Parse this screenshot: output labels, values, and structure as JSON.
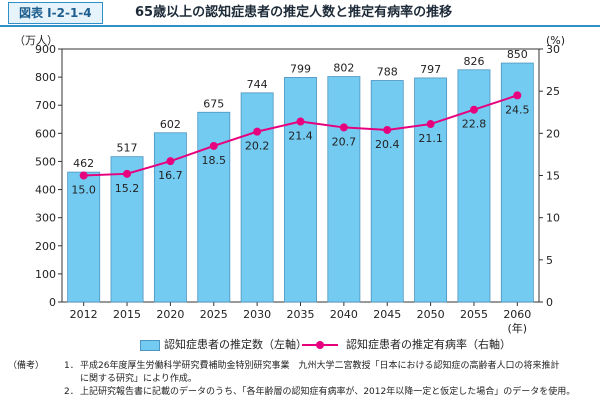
{
  "header": {
    "figure_label": "図表 I-2-1-4",
    "title": "65歳以上の認知症患者の推定人数と推定有病率の推移"
  },
  "chart_data": {
    "type": "bar",
    "title": "65歳以上の認知症患者の推定人数と推定有病率の推移",
    "categories": [
      "2012",
      "2015",
      "2020",
      "2025",
      "2030",
      "2035",
      "2040",
      "2045",
      "2050",
      "2055",
      "2060"
    ],
    "x_unit": "(年)",
    "series": [
      {
        "name": "認知症患者の推定数（左軸）",
        "type": "bar",
        "axis": "left",
        "color": "#74cbf2",
        "values": [
          462,
          517,
          602,
          675,
          744,
          799,
          802,
          788,
          797,
          826,
          850
        ],
        "labels": [
          "462",
          "517",
          "602",
          "675",
          "744",
          "799",
          "802",
          "788",
          "797",
          "826",
          "850"
        ]
      },
      {
        "name": "認知症患者の推定有病率（右軸）",
        "type": "line",
        "axis": "right",
        "color": "#e6007e",
        "values": [
          15.0,
          15.2,
          16.7,
          18.5,
          20.2,
          21.4,
          20.7,
          20.4,
          21.1,
          22.8,
          24.5
        ],
        "labels": [
          "15.0",
          "15.2",
          "16.7",
          "18.5",
          "20.2",
          "21.4",
          "20.7",
          "20.4",
          "21.1",
          "22.8",
          "24.5"
        ]
      }
    ],
    "left_axis": {
      "unit": "（万人）",
      "ylim": [
        0,
        900
      ],
      "ticks": [
        "0",
        "100",
        "200",
        "300",
        "400",
        "500",
        "600",
        "700",
        "800",
        "900"
      ]
    },
    "right_axis": {
      "unit": "(%)",
      "ylim": [
        0,
        30
      ],
      "ticks": [
        "0",
        "5",
        "10",
        "15",
        "20",
        "25",
        "30"
      ]
    },
    "grid": false,
    "legend_position": "bottom"
  },
  "legend": {
    "bar_label": "認知症患者の推定数（左軸）",
    "line_label": "認知症患者の推定有病率（右軸）"
  },
  "notes": {
    "label": "（備考）",
    "items": [
      {
        "num": "1．",
        "text": "平成26年度厚生労働科学研究費補助金特別研究事業　九州大学二宮教授「日本における認知症の高齢者人口の将来推計"
      },
      {
        "num": "",
        "text": "に関する研究」により作成。"
      },
      {
        "num": "2．",
        "text": "上記研究報告書に記載のデータのうち、「各年齢層の認知症有病率が、2012年以降一定と仮定した場合」のデータを使用。"
      }
    ]
  }
}
